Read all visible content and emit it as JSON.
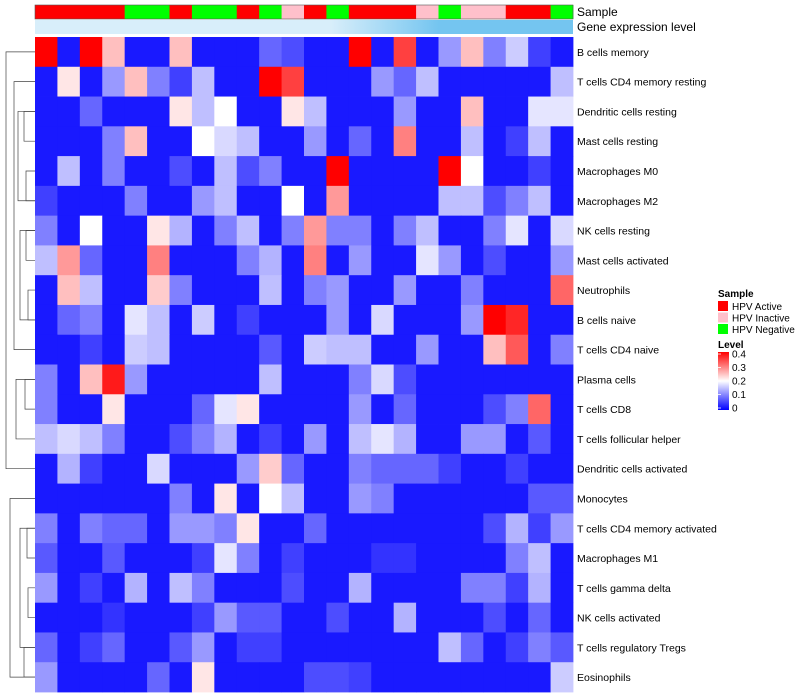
{
  "chart_data": {
    "type": "heatmap",
    "annotation_rows": [
      "Sample",
      "Gene expression level"
    ],
    "column_samples": [
      "HPV Active",
      "HPV Active",
      "HPV Active",
      "HPV Active",
      "HPV Negative",
      "HPV Negative",
      "HPV Active",
      "HPV Negative",
      "HPV Negative",
      "HPV Active",
      "HPV Negative",
      "HPV Inactive",
      "HPV Active",
      "HPV Negative",
      "HPV Active",
      "HPV Active",
      "HPV Active",
      "HPV Inactive",
      "HPV Negative",
      "HPV Inactive",
      "HPV Inactive",
      "HPV Active",
      "HPV Active",
      "HPV Negative"
    ],
    "rows": [
      {
        "label": "B cells memory",
        "values": [
          0.4,
          0.02,
          0.4,
          0.25,
          0.02,
          0.02,
          0.25,
          0.02,
          0.02,
          0.02,
          0.08,
          0.06,
          0.02,
          0.02,
          0.4,
          0.02,
          0.35,
          0.02,
          0.12,
          0.25,
          0.1,
          0.16,
          0.05,
          0.02
        ]
      },
      {
        "label": "T cells CD4 memory resting",
        "values": [
          0.02,
          0.22,
          0.02,
          0.12,
          0.25,
          0.1,
          0.05,
          0.15,
          0.02,
          0.02,
          0.4,
          0.35,
          0.02,
          0.02,
          0.02,
          0.12,
          0.08,
          0.15,
          0.02,
          0.02,
          0.02,
          0.02,
          0.02,
          0.15
        ]
      },
      {
        "label": "Dendritic cells resting",
        "values": [
          0.02,
          0.02,
          0.08,
          0.02,
          0.02,
          0.02,
          0.22,
          0.15,
          0.2,
          0.02,
          0.02,
          0.22,
          0.15,
          0.02,
          0.02,
          0.02,
          0.12,
          0.02,
          0.02,
          0.25,
          0.02,
          0.02,
          0.18,
          0.18
        ]
      },
      {
        "label": "Mast cells resting",
        "values": [
          0.02,
          0.02,
          0.02,
          0.1,
          0.25,
          0.02,
          0.02,
          0.2,
          0.17,
          0.15,
          0.02,
          0.02,
          0.12,
          0.02,
          0.08,
          0.02,
          0.3,
          0.02,
          0.02,
          0.15,
          0.02,
          0.05,
          0.15,
          0.02
        ]
      },
      {
        "label": "Macrophages M0",
        "values": [
          0.02,
          0.15,
          0.02,
          0.1,
          0.02,
          0.02,
          0.06,
          0.02,
          0.15,
          0.06,
          0.1,
          0.02,
          0.02,
          0.4,
          0.02,
          0.02,
          0.02,
          0.02,
          0.4,
          0.2,
          0.02,
          0.02,
          0.05,
          0.02
        ]
      },
      {
        "label": "Macrophages M2",
        "values": [
          0.05,
          0.02,
          0.02,
          0.02,
          0.1,
          0.02,
          0.02,
          0.12,
          0.15,
          0.02,
          0.02,
          0.2,
          0.02,
          0.28,
          0.02,
          0.02,
          0.02,
          0.02,
          0.15,
          0.15,
          0.06,
          0.1,
          0.15,
          0.02
        ]
      },
      {
        "label": "NK cells resting",
        "values": [
          0.1,
          0.02,
          0.2,
          0.02,
          0.02,
          0.22,
          0.14,
          0.02,
          0.1,
          0.15,
          0.02,
          0.1,
          0.28,
          0.1,
          0.1,
          0.02,
          0.1,
          0.15,
          0.02,
          0.02,
          0.1,
          0.18,
          0.02,
          0.17
        ]
      },
      {
        "label": "Mast cells activated",
        "values": [
          0.15,
          0.28,
          0.08,
          0.02,
          0.02,
          0.3,
          0.02,
          0.02,
          0.02,
          0.1,
          0.14,
          0.02,
          0.3,
          0.02,
          0.12,
          0.02,
          0.02,
          0.18,
          0.12,
          0.02,
          0.06,
          0.02,
          0.02,
          0.12
        ]
      },
      {
        "label": "Neutrophils",
        "values": [
          0.02,
          0.25,
          0.15,
          0.02,
          0.02,
          0.24,
          0.1,
          0.02,
          0.02,
          0.02,
          0.15,
          0.02,
          0.1,
          0.12,
          0.02,
          0.02,
          0.12,
          0.02,
          0.02,
          0.1,
          0.02,
          0.02,
          0.02,
          0.32
        ]
      },
      {
        "label": "B cells naive",
        "values": [
          0.02,
          0.08,
          0.1,
          0.02,
          0.18,
          0.15,
          0.02,
          0.16,
          0.02,
          0.05,
          0.02,
          0.02,
          0.02,
          0.12,
          0.02,
          0.17,
          0.02,
          0.02,
          0.02,
          0.12,
          0.4,
          0.37,
          0.02,
          0.02
        ]
      },
      {
        "label": "T cells CD4 naive",
        "values": [
          0.02,
          0.02,
          0.05,
          0.02,
          0.16,
          0.15,
          0.02,
          0.02,
          0.02,
          0.02,
          0.07,
          0.02,
          0.16,
          0.15,
          0.15,
          0.02,
          0.02,
          0.12,
          0.02,
          0.02,
          0.25,
          0.33,
          0.02,
          0.1
        ]
      },
      {
        "label": "Plasma cells",
        "values": [
          0.1,
          0.02,
          0.25,
          0.38,
          0.12,
          0.02,
          0.02,
          0.02,
          0.02,
          0.02,
          0.15,
          0.02,
          0.02,
          0.02,
          0.1,
          0.17,
          0.06,
          0.02,
          0.02,
          0.02,
          0.02,
          0.02,
          0.02,
          0.02
        ]
      },
      {
        "label": "T cells CD8",
        "values": [
          0.1,
          0.02,
          0.02,
          0.22,
          0.02,
          0.02,
          0.02,
          0.08,
          0.18,
          0.22,
          0.02,
          0.02,
          0.02,
          0.02,
          0.12,
          0.02,
          0.08,
          0.02,
          0.02,
          0.02,
          0.06,
          0.1,
          0.32,
          0.02
        ]
      },
      {
        "label": "T cells follicular helper",
        "values": [
          0.15,
          0.17,
          0.15,
          0.1,
          0.02,
          0.02,
          0.06,
          0.1,
          0.14,
          0.02,
          0.05,
          0.02,
          0.12,
          0.02,
          0.15,
          0.18,
          0.14,
          0.02,
          0.02,
          0.12,
          0.12,
          0.02,
          0.07,
          0.02
        ]
      },
      {
        "label": "Dendritic cells activated",
        "values": [
          0.02,
          0.14,
          0.05,
          0.02,
          0.02,
          0.17,
          0.02,
          0.02,
          0.02,
          0.12,
          0.24,
          0.08,
          0.02,
          0.02,
          0.1,
          0.08,
          0.08,
          0.08,
          0.05,
          0.02,
          0.02,
          0.05,
          0.02,
          0.02
        ]
      },
      {
        "label": "Monocytes",
        "values": [
          0.02,
          0.02,
          0.02,
          0.02,
          0.02,
          0.02,
          0.1,
          0.02,
          0.22,
          0.02,
          0.2,
          0.15,
          0.02,
          0.02,
          0.12,
          0.1,
          0.02,
          0.02,
          0.02,
          0.02,
          0.02,
          0.02,
          0.07,
          0.07
        ]
      },
      {
        "label": "T cells CD4 memory activated",
        "values": [
          0.1,
          0.02,
          0.1,
          0.08,
          0.08,
          0.02,
          0.12,
          0.12,
          0.1,
          0.22,
          0.02,
          0.02,
          0.08,
          0.02,
          0.02,
          0.02,
          0.02,
          0.02,
          0.02,
          0.02,
          0.06,
          0.14,
          0.05,
          0.12
        ]
      },
      {
        "label": "Macrophages M1",
        "values": [
          0.07,
          0.02,
          0.02,
          0.07,
          0.02,
          0.02,
          0.02,
          0.05,
          0.18,
          0.1,
          0.02,
          0.05,
          0.02,
          0.02,
          0.02,
          0.04,
          0.04,
          0.02,
          0.02,
          0.02,
          0.02,
          0.1,
          0.15,
          0.02
        ]
      },
      {
        "label": "T cells gamma delta",
        "values": [
          0.12,
          0.02,
          0.05,
          0.02,
          0.14,
          0.02,
          0.15,
          0.1,
          0.02,
          0.02,
          0.02,
          0.06,
          0.02,
          0.02,
          0.14,
          0.02,
          0.02,
          0.02,
          0.02,
          0.1,
          0.1,
          0.05,
          0.14,
          0.02
        ]
      },
      {
        "label": "NK cells activated",
        "values": [
          0.02,
          0.02,
          0.02,
          0.04,
          0.02,
          0.02,
          0.02,
          0.05,
          0.12,
          0.07,
          0.07,
          0.02,
          0.02,
          0.06,
          0.02,
          0.02,
          0.14,
          0.02,
          0.02,
          0.02,
          0.06,
          0.02,
          0.08,
          0.02
        ]
      },
      {
        "label": "T cells regulatory  Tregs",
        "values": [
          0.08,
          0.02,
          0.05,
          0.08,
          0.02,
          0.02,
          0.07,
          0.12,
          0.02,
          0.05,
          0.05,
          0.02,
          0.02,
          0.02,
          0.02,
          0.02,
          0.02,
          0.02,
          0.15,
          0.08,
          0.02,
          0.05,
          0.1,
          0.07
        ]
      },
      {
        "label": "Eosinophils",
        "values": [
          0.12,
          0.02,
          0.02,
          0.02,
          0.02,
          0.08,
          0.02,
          0.22,
          0.02,
          0.02,
          0.02,
          0.02,
          0.06,
          0.06,
          0.05,
          0.02,
          0.02,
          0.02,
          0.02,
          0.02,
          0.02,
          0.02,
          0.02,
          0.16
        ]
      }
    ],
    "legend_sample": {
      "title": "Sample",
      "entries": [
        {
          "label": "HPV Active",
          "color": "#ff0000"
        },
        {
          "label": "HPV Inactive",
          "color": "#ffc0cb"
        },
        {
          "label": "HPV Negative",
          "color": "#00ff00"
        }
      ]
    },
    "legend_level": {
      "title": "Level",
      "ticks": [
        0.4,
        0.3,
        0.2,
        0.1,
        0
      ],
      "tick_labels": [
        "0.4",
        "0.3",
        "0.2",
        "0.1",
        "0"
      ],
      "range": [
        0,
        0.4
      ],
      "low_color": "#0000ff",
      "mid_color": "#ffffff",
      "high_color": "#ff0000"
    },
    "gene_expression_color": "#74c5f0",
    "gene_expression_fade_color": "#d8eefa"
  }
}
